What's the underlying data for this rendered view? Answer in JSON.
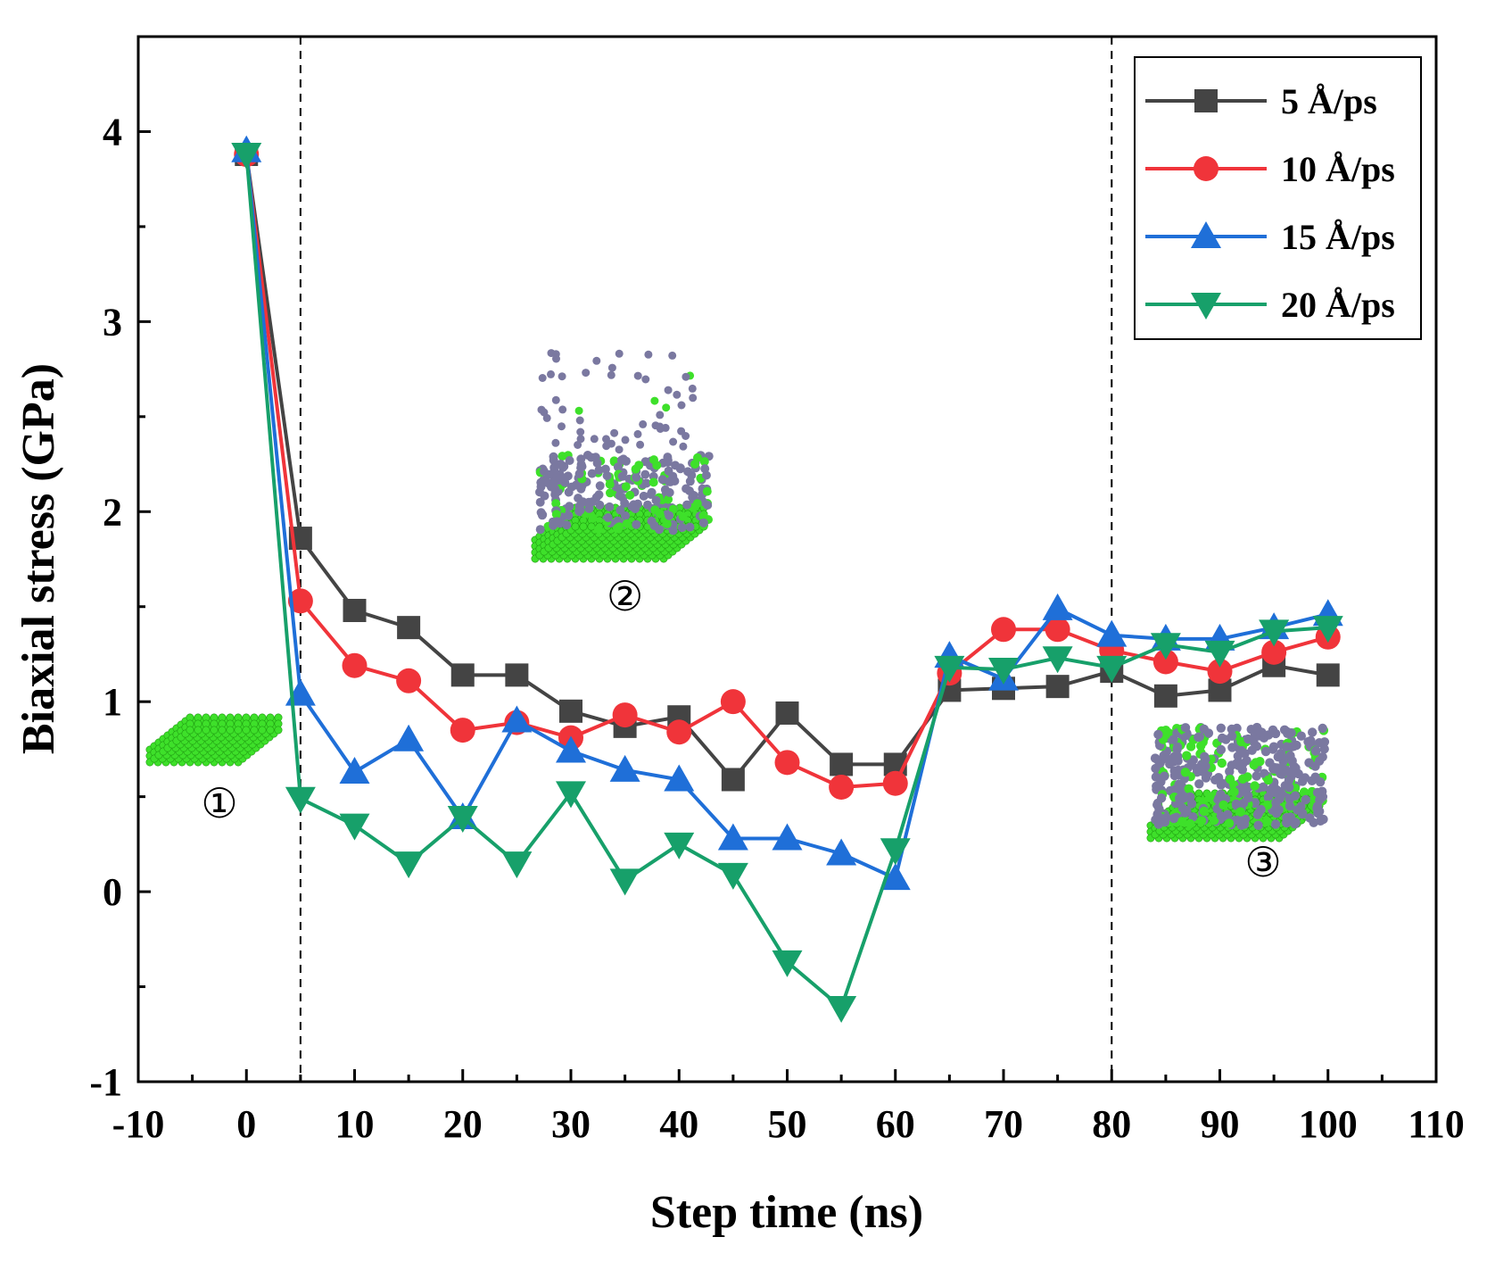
{
  "chart_data": {
    "type": "line",
    "title": "",
    "xlabel": "Step time (ns)",
    "ylabel": "Biaxial stress (GPa)",
    "xlim": [
      -10,
      110
    ],
    "ylim": [
      -1,
      4.5
    ],
    "xticks": [
      -10,
      0,
      10,
      20,
      30,
      40,
      50,
      60,
      70,
      80,
      90,
      100,
      110
    ],
    "yticks": [
      -1,
      0,
      1,
      2,
      3,
      4
    ],
    "xtick_labels": [
      "-10",
      "0",
      "10",
      "20",
      "30",
      "40",
      "50",
      "60",
      "70",
      "80",
      "90",
      "100",
      "110"
    ],
    "ytick_labels": [
      "-1",
      "0",
      "1",
      "2",
      "3",
      "4"
    ],
    "vlines": [
      5,
      80
    ],
    "grid": false,
    "legend_position": "top-right",
    "x": [
      0,
      5,
      10,
      15,
      20,
      25,
      30,
      35,
      40,
      45,
      50,
      55,
      60,
      65,
      70,
      75,
      80,
      85,
      90,
      95,
      100
    ],
    "series": [
      {
        "name": "5 Å/ps",
        "color": "#444444",
        "marker": "square",
        "values": [
          3.88,
          1.86,
          1.48,
          1.39,
          1.14,
          1.14,
          0.95,
          0.87,
          0.92,
          0.59,
          0.94,
          0.67,
          0.67,
          1.06,
          1.07,
          1.08,
          1.16,
          1.03,
          1.06,
          1.19,
          1.14
        ]
      },
      {
        "name": "10 Å/ps",
        "color": "#f0343a",
        "marker": "circle",
        "values": [
          3.88,
          1.53,
          1.19,
          1.11,
          0.85,
          0.89,
          0.81,
          0.93,
          0.84,
          1.0,
          0.68,
          0.55,
          0.57,
          1.15,
          1.38,
          1.38,
          1.27,
          1.21,
          1.16,
          1.26,
          1.34
        ]
      },
      {
        "name": "15 Å/ps",
        "color": "#1f6fd8",
        "marker": "triangle-up",
        "values": [
          3.9,
          1.04,
          0.63,
          0.8,
          0.39,
          0.9,
          0.74,
          0.64,
          0.59,
          0.28,
          0.28,
          0.2,
          0.07,
          1.24,
          1.12,
          1.49,
          1.35,
          1.33,
          1.33,
          1.39,
          1.46
        ]
      },
      {
        "name": "20 Å/ps",
        "color": "#17a06a",
        "marker": "triangle-down",
        "values": [
          3.88,
          0.49,
          0.35,
          0.15,
          0.39,
          0.15,
          0.52,
          0.06,
          0.25,
          0.09,
          -0.37,
          -0.61,
          0.22,
          1.18,
          1.17,
          1.23,
          1.18,
          1.3,
          1.26,
          1.37,
          1.39
        ]
      }
    ],
    "annotations": [
      {
        "label": "①",
        "x": -2.5,
        "y": 0.39
      },
      {
        "label": "②",
        "x": 35,
        "y": 1.48
      },
      {
        "label": "③",
        "x": 94,
        "y": 0.08
      }
    ]
  }
}
